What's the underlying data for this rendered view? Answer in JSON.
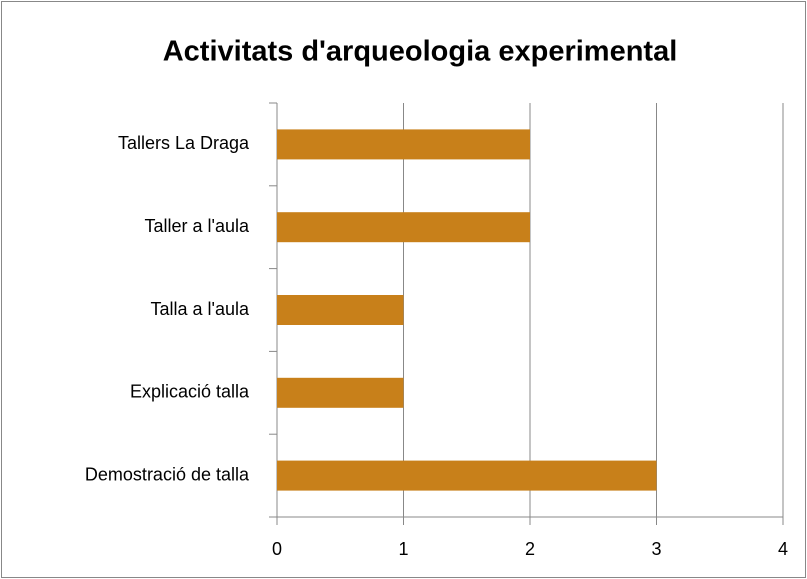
{
  "chart_data": {
    "type": "bar",
    "orientation": "horizontal",
    "title": "Activitats d'arqueologia experimental",
    "categories": [
      "Tallers La Draga",
      "Taller a l'aula",
      "Talla a l'aula",
      "Explicació talla",
      "Demostració de talla"
    ],
    "values": [
      2,
      2,
      1,
      1,
      3
    ],
    "color": "#c8801a",
    "xlim": [
      0,
      4
    ],
    "xticks": [
      0,
      1,
      2,
      3,
      4
    ],
    "grid": true
  }
}
